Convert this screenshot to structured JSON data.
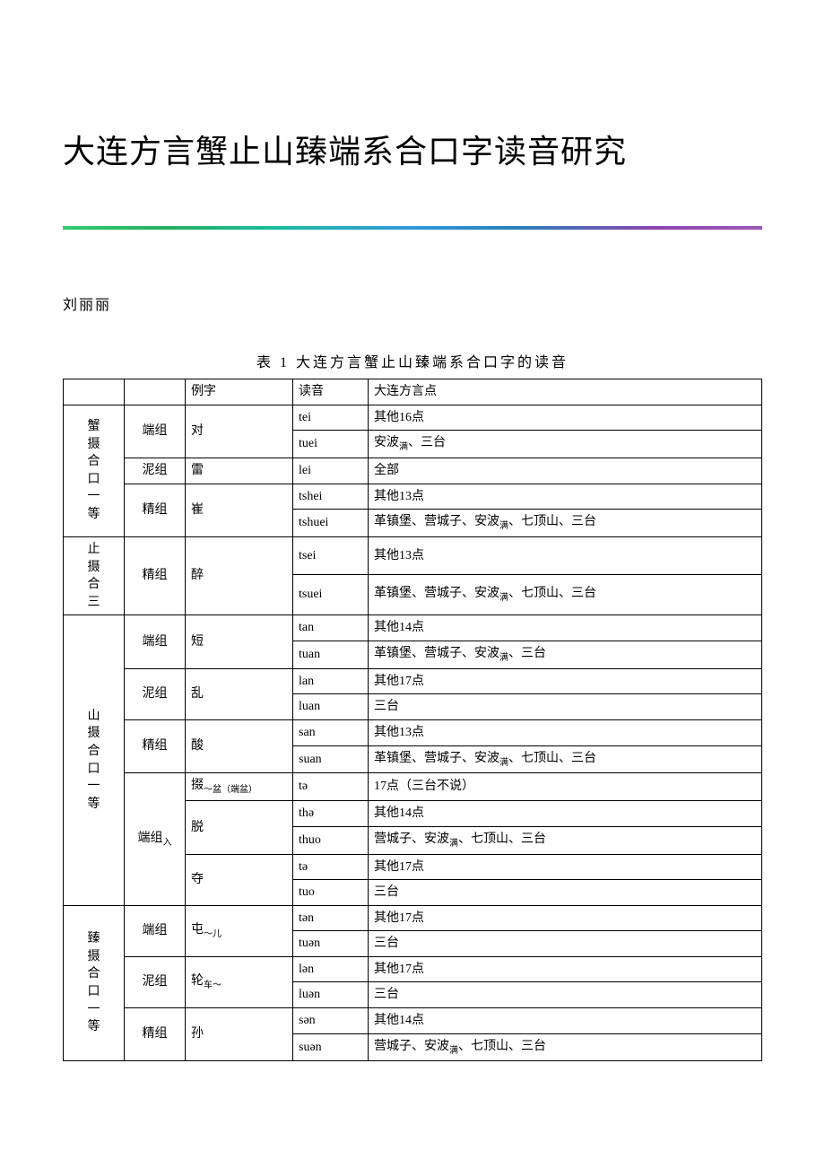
{
  "title": "大连方言蟹止山臻端系合口字读音研究",
  "author": "刘丽丽",
  "tableCaption": "表 1 大连方言蟹止山臻端系合口字的读音",
  "sepGradient": "linear-gradient(90deg, #2ecc71 0%, #27ae60 15%, #1abc9c 30%, #3498db 50%, #2980b9 65%, #8e44ad 85%, #9b59b6 100%)",
  "headers": {
    "h1": "",
    "h2": "",
    "h3": "例字",
    "h4": "读音",
    "h5": "大连方言点"
  },
  "groups": [
    {
      "label": "蟹摄合口一等",
      "subs": [
        {
          "label": "端组",
          "word": "对",
          "rows": [
            {
              "r": "tei",
              "p": "其他16点"
            },
            {
              "r": "tuei",
              "p": "安波<sub>满</sub>、三台"
            }
          ]
        },
        {
          "label": "泥组",
          "word": "雷",
          "rows": [
            {
              "r": "lei",
              "p": "全部"
            }
          ]
        },
        {
          "label": "精组",
          "word": "崔",
          "rows": [
            {
              "r": "tshei",
              "p": "其他13点"
            },
            {
              "r": "tshuei",
              "p": "革镇堡、营城子、安波<sub>满</sub>、七顶山、三台"
            }
          ]
        }
      ]
    },
    {
      "label": "止摄合三",
      "subs": [
        {
          "label": "精组",
          "word": "醉",
          "rows": [
            {
              "r": "tsei",
              "p": "其他13点"
            },
            {
              "r": "tsuei",
              "p": "革镇堡、营城子、安波<sub>满</sub>、七顶山、三台"
            }
          ]
        }
      ]
    },
    {
      "label": "山摄合口一等",
      "subs": [
        {
          "label": "端组",
          "word": "短",
          "rows": [
            {
              "r": "tan",
              "p": "其他14点"
            },
            {
              "r": "tuan",
              "p": "革镇堡、营城子、安波<sub>满</sub>、三台"
            }
          ]
        },
        {
          "label": "泥组",
          "word": "乱",
          "rows": [
            {
              "r": "lan",
              "p": "其他17点"
            },
            {
              "r": "luan",
              "p": "三台"
            }
          ]
        },
        {
          "label": "精组",
          "word": "酸",
          "rows": [
            {
              "r": "san",
              "p": "其他13点"
            },
            {
              "r": "suan",
              "p": "革镇堡、营城子、安波<sub>满</sub>、七顶山、三台"
            }
          ]
        },
        {
          "label": "端组<sub>入</sub>",
          "words": [
            {
              "word": "掇<sub>～盆（端盆）</sub>",
              "rows": [
                {
                  "r": "tə",
                  "p": "17点（三台不说）"
                }
              ]
            },
            {
              "word": "脱",
              "rows": [
                {
                  "r": "thə",
                  "p": "其他14点"
                },
                {
                  "r": "thuo",
                  "p": "营城子、安波<sub>满</sub>、七顶山、三台"
                }
              ]
            },
            {
              "word": "夺",
              "rows": [
                {
                  "r": "tə",
                  "p": "其他17点"
                },
                {
                  "r": "tuo",
                  "p": "三台"
                }
              ]
            }
          ]
        }
      ]
    },
    {
      "label": "臻摄合口一等",
      "subs": [
        {
          "label": "端组",
          "word": "屯<sub>～儿</sub>",
          "rows": [
            {
              "r": "tən",
              "p": "其他17点"
            },
            {
              "r": "tuən",
              "p": "三台"
            }
          ]
        },
        {
          "label": "泥组",
          "word": "轮<sub>车～</sub>",
          "rows": [
            {
              "r": "lən",
              "p": "其他17点"
            },
            {
              "r": "luən",
              "p": "三台"
            }
          ]
        },
        {
          "label": "精组",
          "word": "孙",
          "rows": [
            {
              "r": "sən",
              "p": "其他14点"
            },
            {
              "r": "suən",
              "p": "营城子、安波<sub>满</sub>、七顶山、三台"
            }
          ]
        }
      ]
    }
  ]
}
